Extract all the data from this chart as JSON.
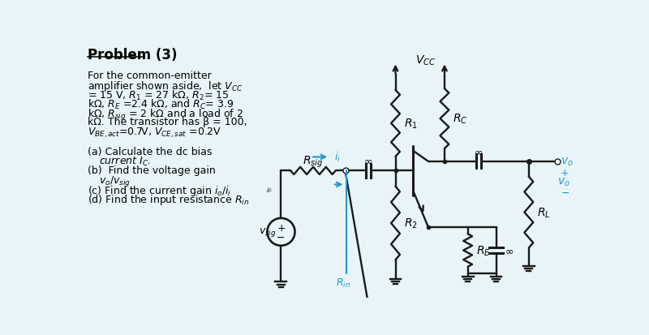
{
  "bg_color": "#e8f4f8",
  "text_color": "#000000",
  "blue_color": "#2299cc",
  "cc": "#1a1a1a",
  "figsize": [
    8.0,
    4.14
  ],
  "dpi": 100,
  "lw_texts": [
    [
      10,
      12,
      "Problem (3)",
      12,
      true,
      false,
      true
    ],
    [
      10,
      48,
      "For the common-emitter",
      9,
      false,
      false,
      false
    ],
    [
      10,
      63,
      "amplifier shown aside,  let $V_{CC}$",
      9,
      false,
      false,
      false
    ],
    [
      10,
      78,
      "= 15 V, $R_1$ = 27 kΩ, $R_2$= 15",
      9,
      false,
      false,
      false
    ],
    [
      10,
      93,
      "kΩ, $R_E$ =2.4 kΩ, and $R_C$= 3.9",
      9,
      false,
      false,
      false
    ],
    [
      10,
      108,
      "kΩ, $R_{sig}$ = 2 kΩ and a load of 2",
      9,
      false,
      false,
      false
    ],
    [
      10,
      123,
      "kΩ. The transistor has β = 100,",
      9,
      false,
      false,
      false
    ],
    [
      10,
      138,
      "$V_{BE,act}$=0.7V, $V_{CE,sat}$ =0.2V",
      9,
      false,
      false,
      false
    ],
    [
      10,
      170,
      "(a) Calculate the dc bias",
      9,
      false,
      false,
      false
    ],
    [
      28,
      185,
      "current $I_C$.",
      9,
      false,
      true,
      false
    ],
    [
      10,
      200,
      "(b)  Find the voltage gain",
      9,
      false,
      false,
      false
    ],
    [
      28,
      215,
      "$v_o/v_{sig}$",
      9,
      false,
      true,
      false
    ],
    [
      10,
      230,
      "(c) Find the current gain $i_o/i_i$",
      9,
      false,
      false,
      false
    ],
    [
      10,
      245,
      "(d) Find the input resistance $R_{in}$",
      9,
      false,
      false,
      false
    ]
  ]
}
